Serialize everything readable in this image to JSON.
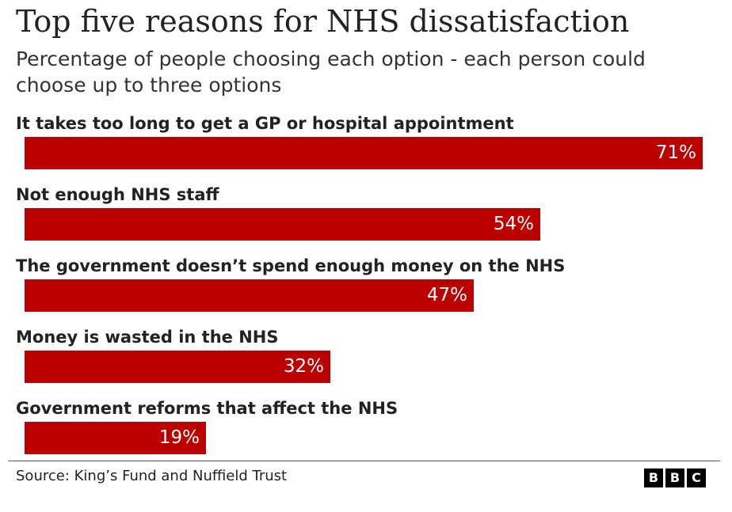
{
  "chart_data": {
    "type": "bar",
    "orientation": "horizontal",
    "title": "Top five reasons for NHS dissatisfaction",
    "subtitle": "Percentage of people choosing each option - each person could choose up to three options",
    "categories": [
      "It takes too long to get a GP or hospital appointment",
      "Not enough NHS staff",
      "The government doesn’t spend enough money on the NHS",
      "Money is wasted in the NHS",
      "Government reforms that affect the NHS"
    ],
    "values": [
      71,
      54,
      47,
      32,
      19
    ],
    "value_labels": [
      "71%",
      "54%",
      "47%",
      "32%",
      "19%"
    ],
    "unit": "%",
    "xlim": [
      0,
      71
    ],
    "grid": false,
    "bar_color": "#bb0000",
    "source": "Source: King’s Fund and Nuffield Trust"
  },
  "branding": {
    "logo_letters": [
      "B",
      "B",
      "C"
    ],
    "logo_color": "#000000"
  }
}
